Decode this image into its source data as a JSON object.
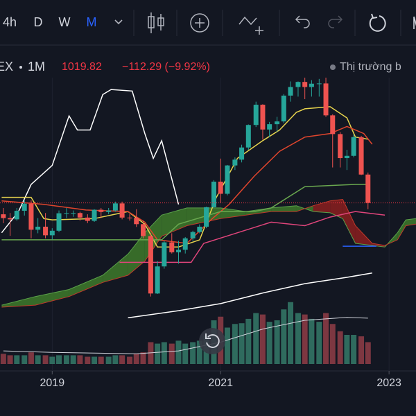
{
  "toolbar": {
    "intervals": [
      "4h",
      "D",
      "W",
      "M"
    ],
    "active_interval": 3,
    "active_color": "#2962ff"
  },
  "header": {
    "symbol": "EX",
    "interval": "1M",
    "price": "1019.82",
    "change": "−112.29 (−9.92%)",
    "market_status": "Thị trường b"
  },
  "chart_data": {
    "type": "candlestick",
    "x": [
      2018.42,
      2018.5,
      2018.58,
      2018.67,
      2018.75,
      2018.83,
      2018.92,
      2019,
      2019.08,
      2019.17,
      2019.25,
      2019.33,
      2019.42,
      2019.5,
      2019.58,
      2019.67,
      2019.75,
      2019.83,
      2019.92,
      2020,
      2020.08,
      2020.17,
      2020.25,
      2020.33,
      2020.42,
      2020.5,
      2020.58,
      2020.67,
      2020.75,
      2020.83,
      2020.92,
      2021,
      2021.08,
      2021.17,
      2021.25,
      2021.33,
      2021.42,
      2021.5,
      2021.58,
      2021.67,
      2021.75,
      2021.83,
      2021.92,
      2022,
      2022.08,
      2022.17,
      2022.25,
      2022.33,
      2022.42,
      2022.5,
      2022.58,
      2022.67,
      2022.75
    ],
    "open": [
      975,
      960,
      955,
      989,
      1017,
      914,
      926,
      892,
      910,
      979,
      980,
      980,
      962,
      949,
      993,
      984,
      990,
      1018,
      962,
      961,
      936,
      889,
      662,
      769,
      864,
      825,
      835,
      880,
      905,
      926,
      1003,
      1104,
      1056,
      1168,
      1191,
      1239,
      1328,
      1408,
      1310,
      1331,
      1342,
      1444,
      1478,
      1498,
      1478,
      1491,
      1492,
      1366,
      1292,
      1197,
      1206,
      1280,
      1132
    ],
    "high": [
      1000,
      980,
      1000,
      1030,
      1030,
      960,
      980,
      920,
      990,
      1000,
      990,
      985,
      975,
      995,
      1000,
      1000,
      1025,
      1025,
      975,
      995,
      950,
      900,
      790,
      870,
      900,
      870,
      885,
      910,
      935,
      1005,
      1110,
      1195,
      1170,
      1200,
      1250,
      1330,
      1420,
      1410,
      1340,
      1360,
      1450,
      1500,
      1500,
      1530,
      1505,
      1510,
      1525,
      1370,
      1300,
      1230,
      1290,
      1285,
      1140
    ],
    "low": [
      940,
      890,
      950,
      970,
      880,
      900,
      880,
      875,
      905,
      960,
      965,
      950,
      940,
      945,
      960,
      975,
      985,
      955,
      950,
      925,
      880,
      650,
      660,
      760,
      820,
      780,
      820,
      870,
      900,
      920,
      1000,
      1020,
      1050,
      1150,
      1180,
      1230,
      1320,
      1270,
      1280,
      1300,
      1335,
      1420,
      1440,
      1430,
      1440,
      1440,
      1360,
      1160,
      1160,
      1150,
      1200,
      1130,
      995
    ],
    "close": [
      960,
      955,
      989,
      1017,
      914,
      926,
      892,
      910,
      979,
      980,
      980,
      962,
      949,
      993,
      984,
      990,
      1018,
      962,
      961,
      936,
      889,
      662,
      769,
      864,
      825,
      835,
      880,
      905,
      926,
      1003,
      1104,
      1056,
      1168,
      1191,
      1239,
      1328,
      1408,
      1310,
      1331,
      1342,
      1444,
      1478,
      1498,
      1478,
      1491,
      1492,
      1366,
      1292,
      1197,
      1206,
      1280,
      1132,
      1020
    ],
    "volume": [
      14,
      12,
      12,
      12,
      16,
      12,
      12,
      10,
      12,
      12,
      12,
      12,
      10,
      10,
      10,
      10,
      12,
      12,
      10,
      14,
      16,
      30,
      28,
      30,
      28,
      32,
      28,
      30,
      32,
      38,
      60,
      65,
      50,
      55,
      56,
      62,
      70,
      68,
      58,
      60,
      75,
      85,
      70,
      68,
      62,
      58,
      70,
      55,
      45,
      40,
      40,
      38,
      30
    ],
    "up_color": "#26a69a",
    "down_color": "#ef5350",
    "volume_up_color": "#2f6b5e",
    "volume_down_color": "#7d3741",
    "xlim": [
      2018.38,
      2023.32
    ],
    "xticks": [
      2019,
      2021,
      2023
    ],
    "ylim": [
      356,
      1630
    ],
    "volume_lim": [
      0,
      100
    ],
    "price_line_color": "#f23645",
    "volume_ma": {
      "color": "#d1d4dc",
      "x": [
        2018.42,
        2019,
        2019.5,
        2020,
        2020.5,
        2021,
        2021.5,
        2022,
        2022.5,
        2022.75
      ],
      "values": [
        18,
        16,
        15,
        14,
        18,
        30,
        48,
        60,
        64,
        63
      ]
    },
    "cloud": {
      "up_color": "#3e7a2a",
      "down_color": "#8b1e1e",
      "a_color": "#5aa04a",
      "b_color": "#c0392b",
      "x": [
        2018.4,
        2018.8,
        2019.2,
        2019.6,
        2019.9,
        2020.1,
        2020.3,
        2020.6,
        2021.0,
        2021.3,
        2021.6,
        2021.9,
        2022.1,
        2022.3,
        2022.45,
        2022.6,
        2022.8,
        2022.95,
        2023.1,
        2023.2,
        2023.32
      ],
      "span_a": [
        616,
        650,
        678,
        734,
        818,
        902,
        972,
        1000,
        1000,
        986,
        1000,
        1009,
        986,
        981,
        958,
        860,
        852,
        846,
        902,
        953,
        958
      ],
      "span_b": [
        608,
        616,
        650,
        706,
        734,
        790,
        888,
        930,
        958,
        972,
        986,
        986,
        1009,
        1028,
        1034,
        930,
        860,
        852,
        874,
        930,
        936
      ]
    },
    "lines": [
      {
        "color": "#ffffff",
        "x": [
          2018.4,
          2018.6,
          2018.75,
          2019.0,
          2019.2,
          2019.3,
          2019.45,
          2019.6,
          2019.7,
          2019.95,
          2020.1,
          2020.2,
          2020.3,
          2020.5
        ],
        "values": [
          902,
          986,
          1093,
          1168,
          1364,
          1308,
          1308,
          1448,
          1468,
          1462,
          1294,
          1196,
          1266,
          1014
        ]
      },
      {
        "color": "#e8d44d",
        "x": [
          2018.4,
          2018.75,
          2018.9,
          2019.0,
          2019.5,
          2019.9,
          2020.1,
          2020.25,
          2020.5,
          2020.75,
          2020.95,
          2021.2,
          2021.5,
          2021.7,
          2021.9,
          2022.0,
          2022.3,
          2022.5,
          2022.6,
          2022.75
        ],
        "values": [
          1042,
          1042,
          958,
          953,
          958,
          986,
          936,
          846,
          846,
          874,
          1042,
          1196,
          1266,
          1308,
          1378,
          1392,
          1400,
          1356,
          1280,
          1272
        ]
      },
      {
        "color": "#e0452d",
        "x": [
          2018.4,
          2018.9,
          2019.4,
          2019.9,
          2020.1,
          2020.25,
          2020.6,
          2020.9,
          2021.1,
          2021.4,
          2021.7,
          2022.0,
          2022.3,
          2022.5,
          2022.7,
          2022.8
        ],
        "values": [
          1028,
          1014,
          992,
          986,
          944,
          874,
          860,
          958,
          1014,
          1126,
          1224,
          1280,
          1294,
          1322,
          1294,
          1252
        ]
      },
      {
        "color": "#6aa84f",
        "x": [
          2018.4,
          2020.3,
          2020.5,
          2021.0,
          2021.4,
          2021.6,
          2022.0,
          2022.6,
          2022.75
        ],
        "values": [
          874,
          874,
          936,
          986,
          986,
          1000,
          1084,
          1093,
          1093
        ]
      },
      {
        "color": "#e0457b",
        "x": [
          2019.8,
          2020.65,
          2020.8,
          2021.2,
          2021.6,
          2022.0,
          2022.3,
          2022.6,
          2022.95
        ],
        "values": [
          785,
          785,
          860,
          902,
          944,
          930,
          964,
          986,
          972
        ]
      },
      {
        "color": "#ffffff",
        "x": [
          2019.9,
          2020.5,
          2021.0,
          2021.5,
          2022.0,
          2022.5,
          2022.8
        ],
        "values": [
          566,
          594,
          622,
          664,
          701,
          726,
          743
        ]
      },
      {
        "color": "#2962ff",
        "x": [
          2022.45,
          2022.85
        ],
        "values": [
          849,
          849
        ]
      }
    ]
  }
}
